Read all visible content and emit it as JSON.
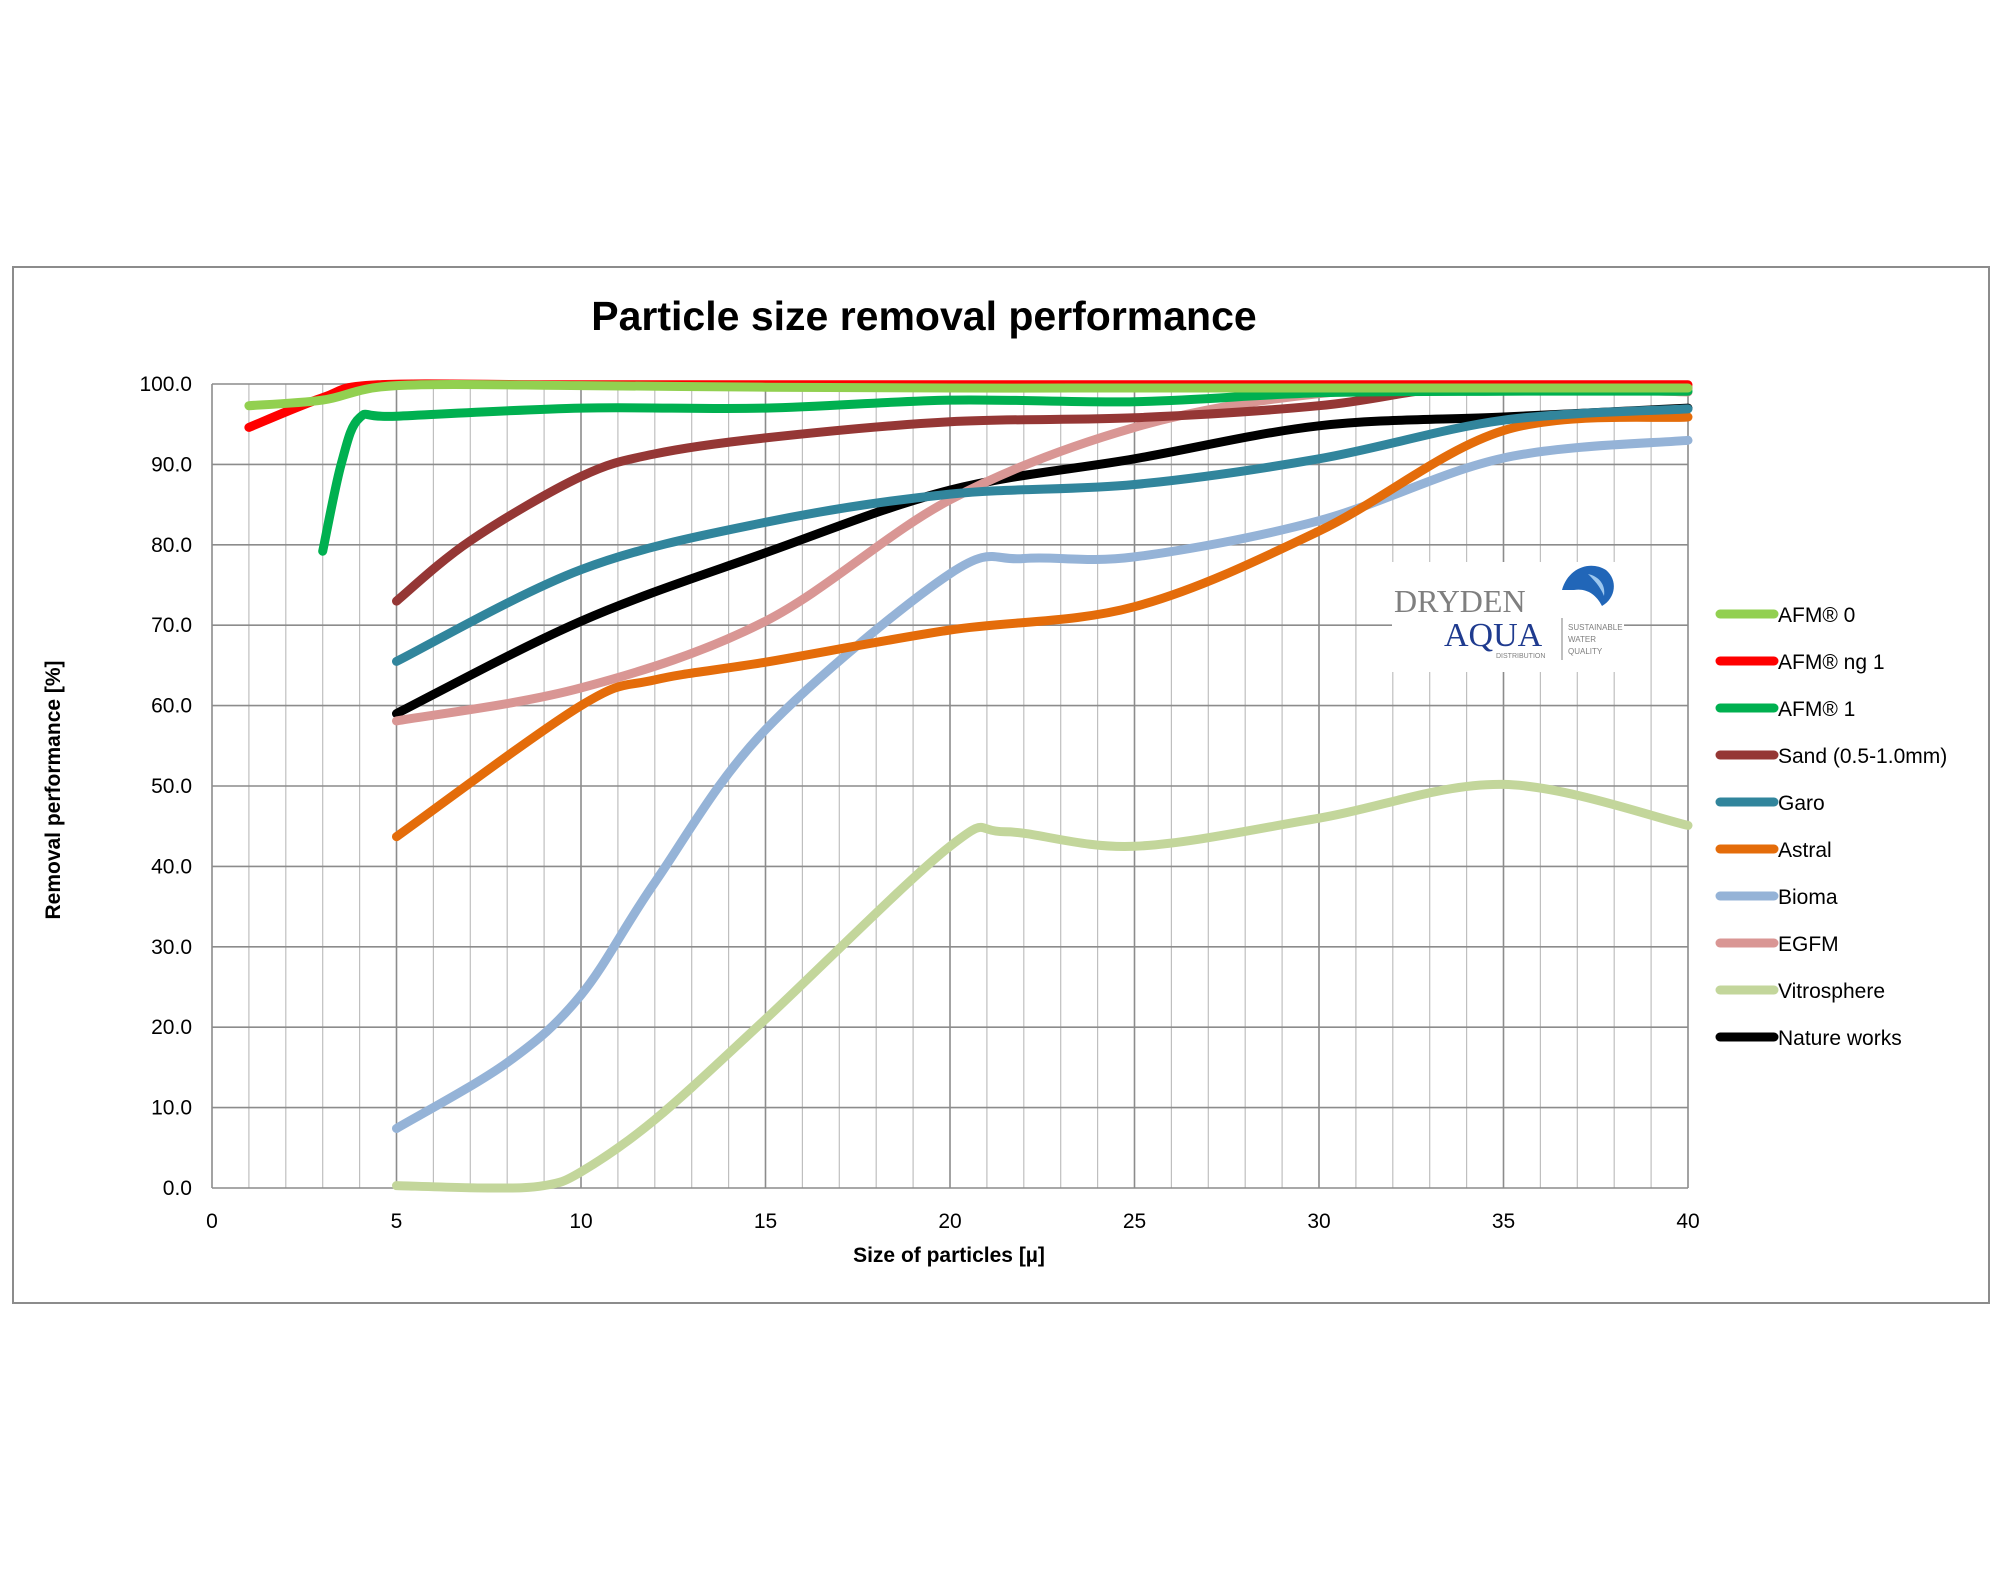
{
  "chart_data": {
    "type": "line",
    "title": "Particle size removal performance",
    "xlabel": "Size of particles [µ]",
    "ylabel": "Removal performance [%]",
    "xlim": [
      0,
      40
    ],
    "ylim": [
      0,
      100
    ],
    "x_ticks": [
      "0",
      "5",
      "10",
      "15",
      "20",
      "25",
      "30",
      "35",
      "40"
    ],
    "y_ticks": [
      "0.0",
      "10.0",
      "20.0",
      "30.0",
      "40.0",
      "50.0",
      "60.0",
      "70.0",
      "80.0",
      "90.0",
      "100.0"
    ],
    "grid": {
      "major": true,
      "minor_x": true
    },
    "legend_position": "right",
    "series": [
      {
        "name": "AFM® 0",
        "color": "#92d050",
        "points": [
          [
            1,
            97.3
          ],
          [
            3,
            98.0
          ],
          [
            5,
            99.8
          ],
          [
            10,
            99.8
          ],
          [
            15,
            99.6
          ],
          [
            20,
            99.5
          ],
          [
            25,
            99.5
          ],
          [
            30,
            99.5
          ],
          [
            35,
            99.5
          ],
          [
            40,
            99.5
          ]
        ]
      },
      {
        "name": "AFM® ng 1",
        "color": "#ff0000",
        "points": [
          [
            1,
            94.6
          ],
          [
            3,
            98.3
          ],
          [
            4.5,
            99.9
          ],
          [
            10,
            99.9
          ],
          [
            20,
            99.9
          ],
          [
            30,
            99.9
          ],
          [
            40,
            99.9
          ]
        ]
      },
      {
        "name": "AFM® 1",
        "color": "#00b050",
        "points": [
          [
            3,
            79.2
          ],
          [
            3.5,
            90.0
          ],
          [
            4,
            95.8
          ],
          [
            5,
            96.0
          ],
          [
            10,
            97.0
          ],
          [
            15,
            97.0
          ],
          [
            20,
            98.0
          ],
          [
            25,
            97.8
          ],
          [
            30,
            98.9
          ],
          [
            35,
            99.1
          ],
          [
            40,
            99.1
          ]
        ]
      },
      {
        "name": "Sand (0.5-1.0mm)",
        "color": "#953735",
        "points": [
          [
            5,
            73.0
          ],
          [
            7,
            80.5
          ],
          [
            10,
            88.5
          ],
          [
            12,
            91.3
          ],
          [
            15,
            93.3
          ],
          [
            20,
            95.3
          ],
          [
            25,
            95.8
          ],
          [
            30,
            97.3
          ],
          [
            33,
            99.3
          ],
          [
            35,
            99.5
          ],
          [
            40,
            99.5
          ]
        ]
      },
      {
        "name": "Garo",
        "color": "#31859c",
        "points": [
          [
            5,
            65.5
          ],
          [
            10,
            76.9
          ],
          [
            15,
            82.8
          ],
          [
            20,
            86.3
          ],
          [
            25,
            87.5
          ],
          [
            30,
            90.7
          ],
          [
            35,
            95.5
          ],
          [
            40,
            96.9
          ]
        ]
      },
      {
        "name": "Astral",
        "color": "#e46c0a",
        "points": [
          [
            5,
            43.7
          ],
          [
            10,
            60.0
          ],
          [
            12,
            63.2
          ],
          [
            15,
            65.4
          ],
          [
            20,
            69.4
          ],
          [
            25,
            72.3
          ],
          [
            30,
            81.7
          ],
          [
            35,
            94.2
          ],
          [
            40,
            95.9
          ]
        ]
      },
      {
        "name": "Bioma",
        "color": "#95b3d7",
        "points": [
          [
            5,
            7.4
          ],
          [
            8,
            15.6
          ],
          [
            10,
            24.0
          ],
          [
            12,
            38.0
          ],
          [
            15,
            57.0
          ],
          [
            20,
            76.4
          ],
          [
            22,
            78.3
          ],
          [
            25,
            78.5
          ],
          [
            30,
            83.0
          ],
          [
            35,
            90.8
          ],
          [
            40,
            93.0
          ]
        ]
      },
      {
        "name": "EGFM",
        "color": "#d99694",
        "points": [
          [
            5,
            58.1
          ],
          [
            10,
            62.2
          ],
          [
            15,
            70.5
          ],
          [
            20,
            85.6
          ],
          [
            25,
            94.6
          ],
          [
            30,
            98.8
          ],
          [
            35,
            99.6
          ],
          [
            40,
            99.0
          ]
        ]
      },
      {
        "name": "Vitrosphere",
        "color": "#c3d69b",
        "points": [
          [
            5,
            0.3
          ],
          [
            7.5,
            0.0
          ],
          [
            9,
            0.3
          ],
          [
            10,
            2.0
          ],
          [
            12,
            8.5
          ],
          [
            15,
            21.0
          ],
          [
            20,
            42.5
          ],
          [
            21.5,
            44.3
          ],
          [
            25,
            42.5
          ],
          [
            30,
            46.0
          ],
          [
            35,
            50.2
          ],
          [
            40,
            45.1
          ]
        ]
      },
      {
        "name": "Nature works",
        "color": "#000000",
        "points": [
          [
            5,
            59.0
          ],
          [
            10,
            70.5
          ],
          [
            15,
            79.0
          ],
          [
            20,
            86.8
          ],
          [
            25,
            90.7
          ],
          [
            30,
            94.8
          ],
          [
            35,
            95.9
          ],
          [
            40,
            97.0
          ]
        ]
      }
    ]
  },
  "logo": {
    "brand_line1": "DRYDEN",
    "brand_line2": "AQUA",
    "sub_line": "DISTRIBUTION",
    "tagline_1": "SUSTAINABLE",
    "tagline_2": "WATER",
    "tagline_3": "QUALITY",
    "colors": {
      "brand_gray": "#7f7f7f",
      "brand_blue": "#1f3b8f",
      "drop_blue": "#2166b8"
    }
  }
}
